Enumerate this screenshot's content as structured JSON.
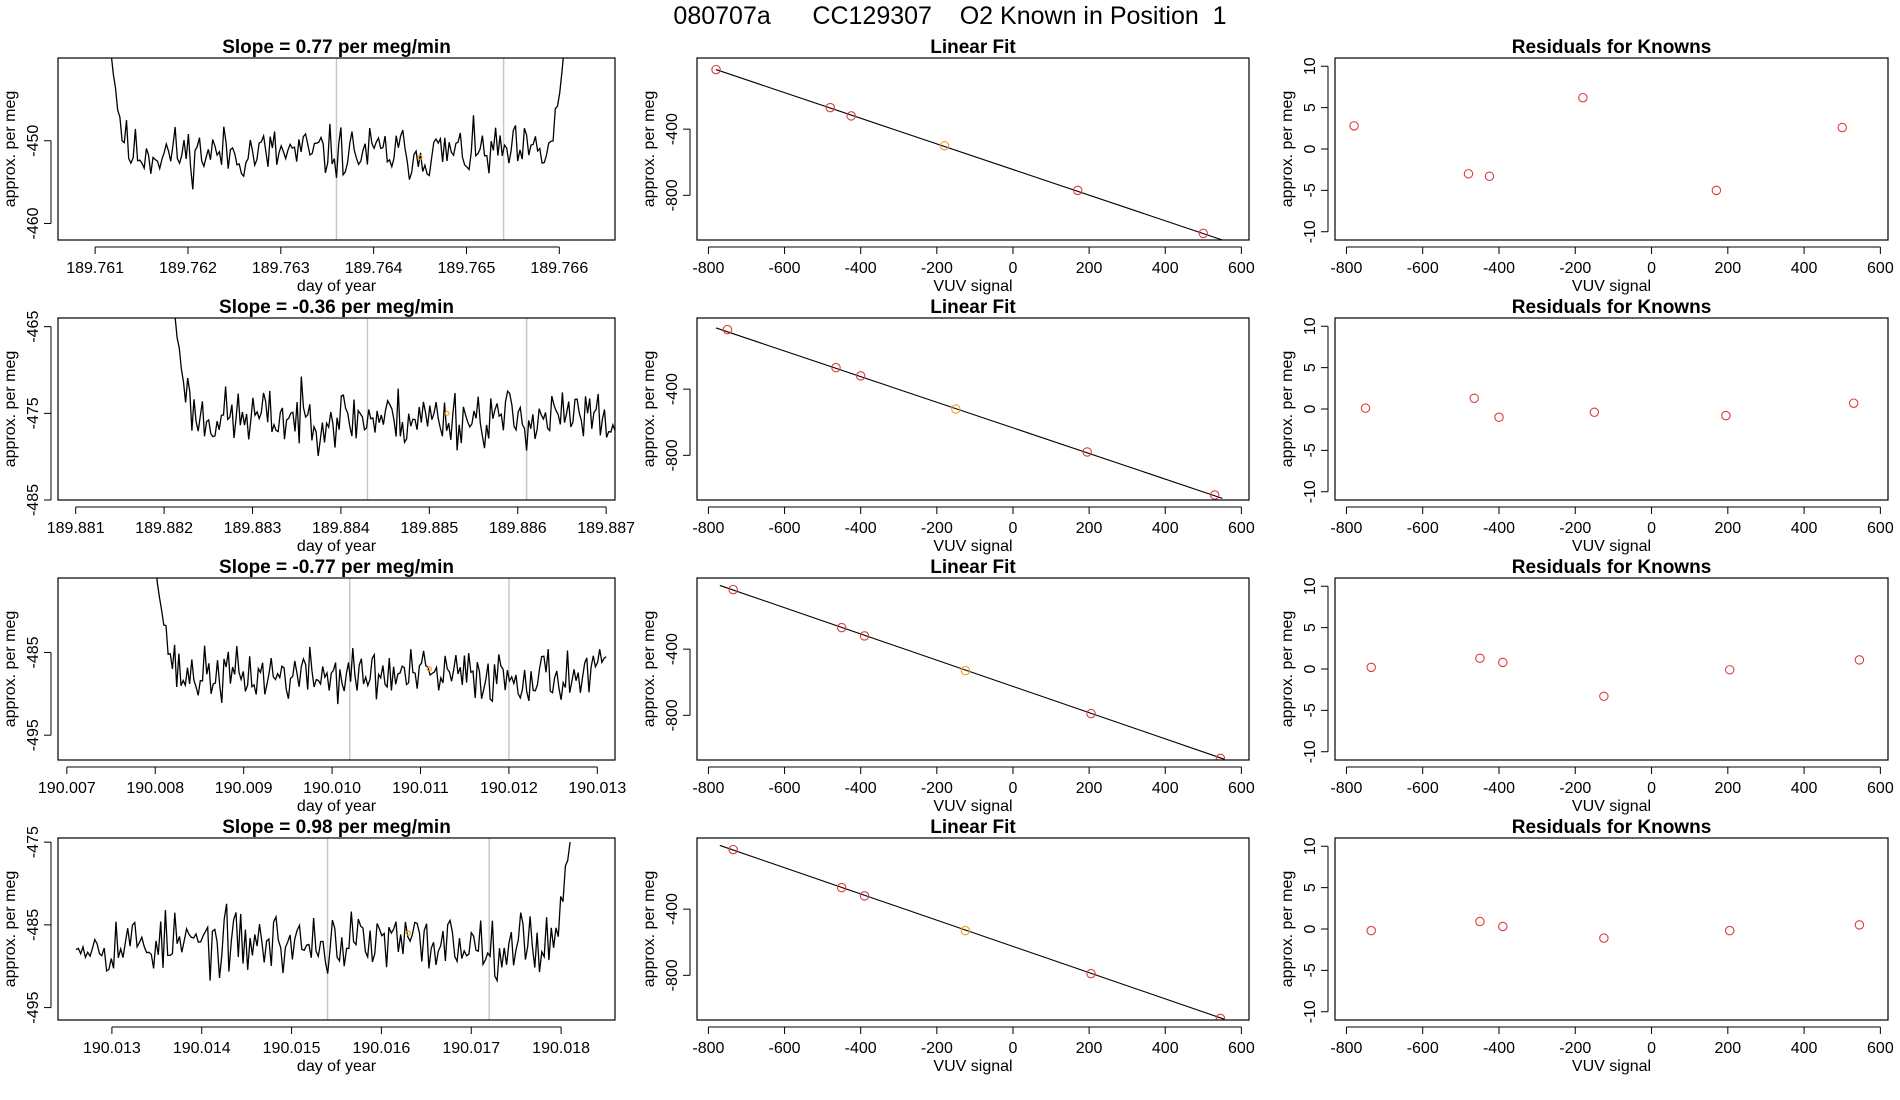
{
  "page_title": "080707a      CC129307    O2 Known in Position  1",
  "colors": {
    "line": "#000000",
    "point": "#e03a3a",
    "highlight": "#f0a020",
    "vline": "#c8c8c8"
  },
  "chart_data": [
    {
      "type": "line",
      "panel": "trace",
      "row": 1,
      "title": "Slope =  0.77  per meg/min",
      "xlabel": "day of year",
      "ylabel": "approx. per meg",
      "xlim": [
        189.7606,
        189.7666
      ],
      "ylim": [
        -462,
        -440
      ],
      "xticks": [
        189.761,
        189.762,
        189.763,
        189.764,
        189.765,
        189.766
      ],
      "xtick_labels": [
        "189.761",
        "189.762",
        "189.763",
        "189.764",
        "189.765",
        "189.766"
      ],
      "yticks": [
        -450,
        -460
      ],
      "ytick_labels": [
        "-450",
        "-460"
      ],
      "vlines": [
        189.7636,
        189.7654
      ],
      "series_start": 189.7611,
      "series_end": 189.7661,
      "baseline": -451.5,
      "noise": 1.6,
      "start_value": -430,
      "end_value": -432,
      "seed": 11,
      "highlight": {
        "x": 189.7645,
        "y": -452
      }
    },
    {
      "type": "scatter",
      "panel": "fit",
      "row": 1,
      "title": "Linear Fit",
      "xlabel": "VUV signal",
      "ylabel": "approx. per meg",
      "xlim": [
        -830,
        620
      ],
      "ylim": [
        -1070,
        30
      ],
      "xticks": [
        -800,
        -600,
        -400,
        -200,
        0,
        200,
        400,
        600
      ],
      "xtick_labels": [
        "-800",
        "-600",
        "-400",
        "-200",
        "0",
        "200",
        "400",
        "600"
      ],
      "yticks": [
        -400,
        -800
      ],
      "ytick_labels": [
        "-400",
        "-800"
      ],
      "x": [
        -780,
        -480,
        -425,
        -180,
        170,
        500
      ],
      "y": [
        -40,
        -270,
        -320,
        -500,
        -770,
        -1030
      ],
      "highlight_index": 3,
      "fit_line": {
        "x": [
          -780,
          550
        ],
        "y": [
          -40,
          -1070
        ]
      }
    },
    {
      "type": "scatter",
      "panel": "residuals",
      "row": 1,
      "title": "Residuals for Knowns",
      "xlabel": "VUV signal",
      "ylabel": "approx. per meg",
      "xlim": [
        -830,
        620
      ],
      "ylim": [
        -11,
        11
      ],
      "xticks": [
        -800,
        -600,
        -400,
        -200,
        0,
        200,
        400,
        600
      ],
      "xtick_labels": [
        "-800",
        "-600",
        "-400",
        "-200",
        "0",
        "200",
        "400",
        "600"
      ],
      "yticks": [
        10,
        5,
        0,
        -5,
        -10
      ],
      "ytick_labels": [
        "10",
        "5",
        "0",
        "-5",
        "-10"
      ],
      "x": [
        -780,
        -480,
        -425,
        -180,
        170,
        500
      ],
      "y": [
        2.8,
        -3.0,
        -3.3,
        6.2,
        -5.0,
        2.6
      ]
    },
    {
      "type": "line",
      "panel": "trace",
      "row": 2,
      "title": "Slope =  -0.36  per meg/min",
      "xlabel": "day of year",
      "ylabel": "approx. per meg",
      "xlim": [
        189.8808,
        189.8871
      ],
      "ylim": [
        -485,
        -464
      ],
      "xticks": [
        189.881,
        189.882,
        189.883,
        189.884,
        189.885,
        189.886,
        189.887
      ],
      "xtick_labels": [
        "189.881",
        "189.882",
        "189.883",
        "189.884",
        "189.885",
        "189.886",
        "189.887"
      ],
      "yticks": [
        -465,
        -475,
        -485
      ],
      "ytick_labels": [
        "-465",
        "-475",
        "-485"
      ],
      "vlines": [
        189.8843,
        189.8861
      ],
      "series_start": 189.8821,
      "series_end": 189.8871,
      "baseline": -475.5,
      "noise": 1.7,
      "start_value": -462,
      "end_value": -477,
      "seed": 23,
      "highlight": {
        "x": 189.8852,
        "y": -475
      }
    },
    {
      "type": "scatter",
      "panel": "fit",
      "row": 2,
      "title": "Linear Fit",
      "xlabel": "VUV signal",
      "ylabel": "approx. per meg",
      "xlim": [
        -830,
        620
      ],
      "ylim": [
        -1070,
        30
      ],
      "xticks": [
        -800,
        -600,
        -400,
        -200,
        0,
        200,
        400,
        600
      ],
      "xtick_labels": [
        "-800",
        "-600",
        "-400",
        "-200",
        "0",
        "200",
        "400",
        "600"
      ],
      "yticks": [
        -400,
        -800
      ],
      "ytick_labels": [
        "-400",
        "-800"
      ],
      "x": [
        -750,
        -465,
        -400,
        -150,
        195,
        530
      ],
      "y": [
        -40,
        -270,
        -320,
        -520,
        -780,
        -1040
      ],
      "highlight_index": 3,
      "fit_line": {
        "x": [
          -780,
          550
        ],
        "y": [
          -30,
          -1060
        ]
      }
    },
    {
      "type": "scatter",
      "panel": "residuals",
      "row": 2,
      "title": "Residuals for Knowns",
      "xlabel": "VUV signal",
      "ylabel": "approx. per meg",
      "xlim": [
        -830,
        620
      ],
      "ylim": [
        -11,
        11
      ],
      "xticks": [
        -800,
        -600,
        -400,
        -200,
        0,
        200,
        400,
        600
      ],
      "xtick_labels": [
        "-800",
        "-600",
        "-400",
        "-200",
        "0",
        "200",
        "400",
        "600"
      ],
      "yticks": [
        10,
        5,
        0,
        -5,
        -10
      ],
      "ytick_labels": [
        "10",
        "5",
        "0",
        "-5",
        "-10"
      ],
      "x": [
        -750,
        -465,
        -400,
        -150,
        195,
        530
      ],
      "y": [
        0.1,
        1.3,
        -1.0,
        -0.4,
        -0.8,
        0.7
      ]
    },
    {
      "type": "line",
      "panel": "trace",
      "row": 3,
      "title": "Slope =  -0.77  per meg/min",
      "xlabel": "day of year",
      "ylabel": "approx. per meg",
      "xlim": [
        190.0069,
        190.0132
      ],
      "ylim": [
        -498,
        -476
      ],
      "xticks": [
        190.007,
        190.008,
        190.009,
        190.01,
        190.011,
        190.012,
        190.013
      ],
      "xtick_labels": [
        "190.007",
        "190.008",
        "190.009",
        "190.010",
        "190.011",
        "190.012",
        "190.013"
      ],
      "yticks": [
        -485,
        -495
      ],
      "ytick_labels": [
        "-485",
        "-495"
      ],
      "vlines": [
        190.0102,
        190.012
      ],
      "series_start": 190.008,
      "series_end": 190.0131,
      "baseline": -487.8,
      "noise": 1.6,
      "start_value": -474,
      "end_value": -485.5,
      "seed": 37,
      "highlight": {
        "x": 190.0111,
        "y": -487
      }
    },
    {
      "type": "scatter",
      "panel": "fit",
      "row": 3,
      "title": "Linear Fit",
      "xlabel": "VUV signal",
      "ylabel": "approx. per meg",
      "xlim": [
        -830,
        620
      ],
      "ylim": [
        -1070,
        30
      ],
      "xticks": [
        -800,
        -600,
        -400,
        -200,
        0,
        200,
        400,
        600
      ],
      "xtick_labels": [
        "-800",
        "-600",
        "-400",
        "-200",
        "0",
        "200",
        "400",
        "600"
      ],
      "yticks": [
        -400,
        -800
      ],
      "ytick_labels": [
        "-400",
        "-800"
      ],
      "x": [
        -735,
        -450,
        -390,
        -125,
        205,
        545
      ],
      "y": [
        -40,
        -270,
        -320,
        -530,
        -790,
        -1060
      ],
      "highlight_index": 3,
      "fit_line": {
        "x": [
          -770,
          555
        ],
        "y": [
          -15,
          -1065
        ]
      }
    },
    {
      "type": "scatter",
      "panel": "residuals",
      "row": 3,
      "title": "Residuals for Knowns",
      "xlabel": "VUV signal",
      "ylabel": "approx. per meg",
      "xlim": [
        -830,
        620
      ],
      "ylim": [
        -11,
        11
      ],
      "xticks": [
        -800,
        -600,
        -400,
        -200,
        0,
        200,
        400,
        600
      ],
      "xtick_labels": [
        "-800",
        "-600",
        "-400",
        "-200",
        "0",
        "200",
        "400",
        "600"
      ],
      "yticks": [
        10,
        5,
        0,
        -5,
        -10
      ],
      "ytick_labels": [
        "10",
        "5",
        "0",
        "-5",
        "-10"
      ],
      "x": [
        -735,
        -450,
        -390,
        -125,
        205,
        545
      ],
      "y": [
        0.2,
        1.3,
        0.8,
        -3.3,
        -0.1,
        1.1
      ]
    },
    {
      "type": "line",
      "panel": "trace",
      "row": 4,
      "title": "Slope =  0.98  per meg/min",
      "xlabel": "day of year",
      "ylabel": "approx. per meg",
      "xlim": [
        190.0124,
        190.0186
      ],
      "ylim": [
        -496.5,
        -474.5
      ],
      "xticks": [
        190.013,
        190.014,
        190.015,
        190.016,
        190.017,
        190.018
      ],
      "xtick_labels": [
        "190.013",
        "190.014",
        "190.015",
        "190.016",
        "190.017",
        "190.018"
      ],
      "yticks": [
        -475,
        -485,
        -495
      ],
      "ytick_labels": [
        "-475",
        "-485",
        "-495"
      ],
      "vlines": [
        190.0154,
        190.0172
      ],
      "series_start": 190.0126,
      "series_end": 190.0181,
      "baseline": -487.2,
      "noise": 1.9,
      "start_value": -488,
      "end_value": -475,
      "seed": 53,
      "highlight": {
        "x": 190.0163,
        "y": -486
      }
    },
    {
      "type": "scatter",
      "panel": "fit",
      "row": 4,
      "title": "Linear Fit",
      "xlabel": "VUV signal",
      "ylabel": "approx. per meg",
      "xlim": [
        -830,
        620
      ],
      "ylim": [
        -1070,
        30
      ],
      "xticks": [
        -800,
        -600,
        -400,
        -200,
        0,
        200,
        400,
        600
      ],
      "xtick_labels": [
        "-800",
        "-600",
        "-400",
        "-200",
        "0",
        "200",
        "400",
        "600"
      ],
      "yticks": [
        -400,
        -800
      ],
      "ytick_labels": [
        "-400",
        "-800"
      ],
      "x": [
        -735,
        -450,
        -390,
        -125,
        205,
        545
      ],
      "y": [
        -40,
        -270,
        -320,
        -530,
        -790,
        -1060
      ],
      "highlight_index": 3,
      "fit_line": {
        "x": [
          -770,
          555
        ],
        "y": [
          -15,
          -1065
        ]
      }
    },
    {
      "type": "scatter",
      "panel": "residuals",
      "row": 4,
      "title": "Residuals for Knowns",
      "xlabel": "VUV signal",
      "ylabel": "approx. per meg",
      "xlim": [
        -830,
        620
      ],
      "ylim": [
        -11,
        11
      ],
      "xticks": [
        -800,
        -600,
        -400,
        -200,
        0,
        200,
        400,
        600
      ],
      "xtick_labels": [
        "-800",
        "-600",
        "-400",
        "-200",
        "0",
        "200",
        "400",
        "600"
      ],
      "yticks": [
        10,
        5,
        0,
        -5,
        -10
      ],
      "ytick_labels": [
        "10",
        "5",
        "0",
        "-5",
        "-10"
      ],
      "x": [
        -735,
        -450,
        -390,
        -125,
        205,
        545
      ],
      "y": [
        -0.2,
        0.9,
        0.3,
        -1.1,
        -0.2,
        0.5
      ]
    }
  ]
}
